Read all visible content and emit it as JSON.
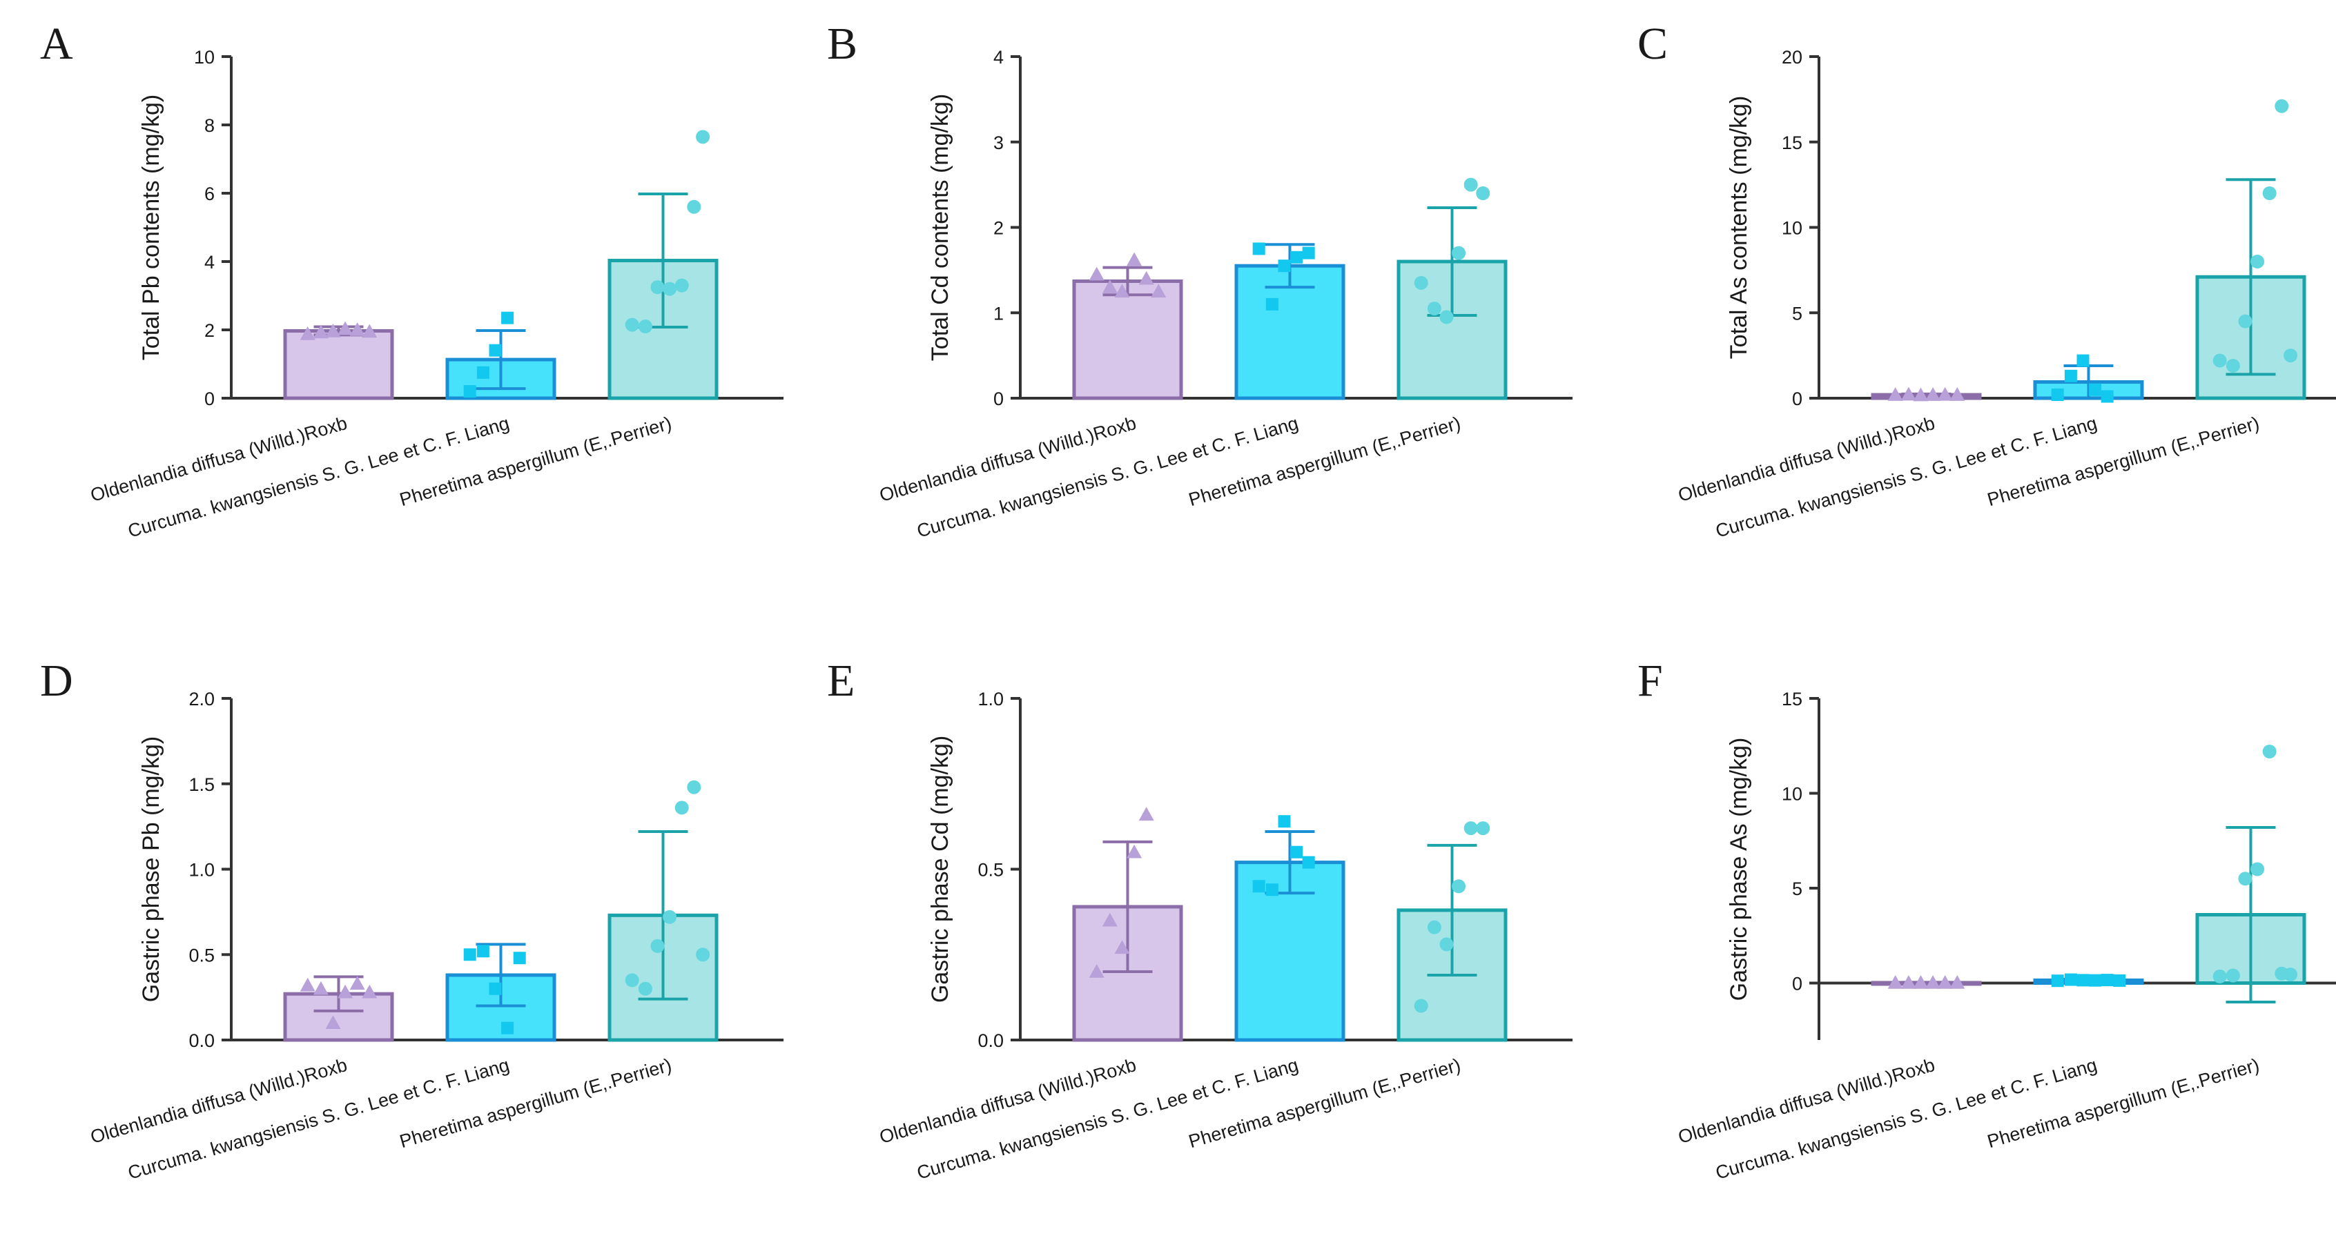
{
  "figure": {
    "categories": [
      "Oldenlandia diffusa (Willd.)Roxb",
      "Curcuma. kwangsiensis S. G. Lee et C. F. Liang",
      "Pheretima aspergillum (E,.Perrier)"
    ],
    "series_colors": {
      "fill": [
        "#d7c6ea",
        "#46e1fb",
        "#a6e4e6"
      ],
      "edge": [
        "#8b6da8",
        "#1a8fd6",
        "#1aa3a8"
      ],
      "point": [
        "#b8a0d8",
        "#12c8ee",
        "#62d6df"
      ]
    },
    "point_shapes": [
      "triangle",
      "square",
      "circle"
    ]
  },
  "chart_data": [
    {
      "panel": "A",
      "type": "bar",
      "title": "",
      "xlabel": "",
      "ylabel": "Total Pb contents  (mg/kg)",
      "ylim": [
        0,
        10
      ],
      "yticks": [
        0,
        2,
        4,
        6,
        8,
        10
      ],
      "categories": [
        "Oldenlandia diffusa (Willd.)Roxb",
        "Curcuma. kwangsiensis S. G. Lee et C. F. Liang",
        "Pheretima aspergillum (E,.Perrier)"
      ],
      "values": [
        1.97,
        1.13,
        4.03
      ],
      "errors": [
        0.12,
        0.85,
        1.95
      ],
      "points": [
        [
          1.88,
          1.93,
          1.96,
          2.03,
          2.0,
          1.95
        ],
        [
          0.2,
          0.75,
          1.4,
          2.35
        ],
        [
          2.15,
          2.1,
          3.25,
          3.2,
          3.3,
          5.6,
          7.65
        ]
      ]
    },
    {
      "panel": "B",
      "type": "bar",
      "title": "",
      "xlabel": "",
      "ylabel": "Total Cd contents  (mg/kg)",
      "ylim": [
        0,
        4
      ],
      "yticks": [
        0,
        1,
        2,
        3,
        4
      ],
      "categories": [
        "Oldenlandia diffusa (Willd.)Roxb",
        "Curcuma. kwangsiensis S. G. Lee et C. F. Liang",
        "Pheretima aspergillum (E,.Perrier)"
      ],
      "values": [
        1.37,
        1.55,
        1.6
      ],
      "errors": [
        0.16,
        0.25,
        0.63
      ],
      "points": [
        [
          1.45,
          1.3,
          1.25,
          1.62,
          1.4,
          1.25
        ],
        [
          1.75,
          1.1,
          1.55,
          1.65,
          1.7
        ],
        [
          1.35,
          1.05,
          0.95,
          1.7,
          2.5,
          2.4
        ]
      ]
    },
    {
      "panel": "C",
      "type": "bar",
      "title": "",
      "xlabel": "",
      "ylabel": "Total As contents  (mg/kg)",
      "ylim": [
        0,
        20
      ],
      "yticks": [
        0,
        5,
        10,
        15,
        20
      ],
      "categories": [
        "Oldenlandia diffusa (Willd.)Roxb",
        "Curcuma. kwangsiensis S. G. Lee et C. F. Liang",
        "Pheretima aspergillum (E,.Perrier)"
      ],
      "values": [
        0.2,
        0.95,
        7.1
      ],
      "errors": [
        0.05,
        0.95,
        5.7
      ],
      "points": [
        [
          0.2,
          0.22,
          0.18,
          0.2,
          0.21,
          0.2
        ],
        [
          0.2,
          1.3,
          2.2,
          0.5,
          0.1
        ],
        [
          2.2,
          1.9,
          4.5,
          8.0,
          12.0,
          17.1,
          2.5
        ]
      ]
    },
    {
      "panel": "D",
      "type": "bar",
      "title": "",
      "xlabel": "",
      "ylabel": "Gastric phase Pb (mg/kg)",
      "ylim": [
        0,
        2.0
      ],
      "yticks": [
        0.0,
        0.5,
        1.0,
        1.5,
        2.0
      ],
      "categories": [
        "Oldenlandia diffusa (Willd.)Roxb",
        "Curcuma. kwangsiensis S. G. Lee et C. F. Liang",
        "Pheretima aspergillum (E,.Perrier)"
      ],
      "values": [
        0.27,
        0.38,
        0.73
      ],
      "errors": [
        0.1,
        0.18,
        0.49
      ],
      "points": [
        [
          0.32,
          0.3,
          0.1,
          0.28,
          0.33,
          0.28
        ],
        [
          0.5,
          0.52,
          0.3,
          0.07,
          0.48
        ],
        [
          0.35,
          0.3,
          0.55,
          0.72,
          1.36,
          1.48,
          0.5
        ]
      ]
    },
    {
      "panel": "E",
      "type": "bar",
      "title": "",
      "xlabel": "",
      "ylabel": "Gastric phase Cd (mg/kg)",
      "ylim": [
        0,
        1.0
      ],
      "yticks": [
        0.0,
        0.5,
        1.0
      ],
      "categories": [
        "Oldenlandia diffusa (Willd.)Roxb",
        "Curcuma. kwangsiensis S. G. Lee et C. F. Liang",
        "Pheretima aspergillum (E,.Perrier)"
      ],
      "values": [
        0.39,
        0.52,
        0.38
      ],
      "errors": [
        0.19,
        0.09,
        0.19
      ],
      "points": [
        [
          0.2,
          0.35,
          0.27,
          0.55,
          0.66
        ],
        [
          0.45,
          0.44,
          0.64,
          0.55,
          0.52
        ],
        [
          0.1,
          0.33,
          0.28,
          0.45,
          0.62,
          0.62
        ]
      ]
    },
    {
      "panel": "F",
      "type": "bar",
      "title": "",
      "xlabel": "",
      "ylabel": "Gastric phase As   (mg/kg)",
      "ylim": [
        -3,
        15
      ],
      "yticks": [
        0,
        5,
        10,
        15
      ],
      "categories": [
        "Oldenlandia diffusa (Willd.)Roxb",
        "Curcuma. kwangsiensis S. G. Lee et C. F. Liang",
        "Pheretima aspergillum (E,.Perrier)"
      ],
      "values": [
        0.02,
        0.15,
        3.6
      ],
      "errors": [
        0.02,
        0.05,
        4.6
      ],
      "points": [
        [
          0.02,
          0.02,
          0.02,
          0.02,
          0.02,
          0.02
        ],
        [
          0.12,
          0.18,
          0.15,
          0.14,
          0.16,
          0.13
        ],
        [
          0.35,
          0.4,
          5.5,
          6.0,
          12.2,
          0.5,
          0.45
        ]
      ]
    }
  ]
}
